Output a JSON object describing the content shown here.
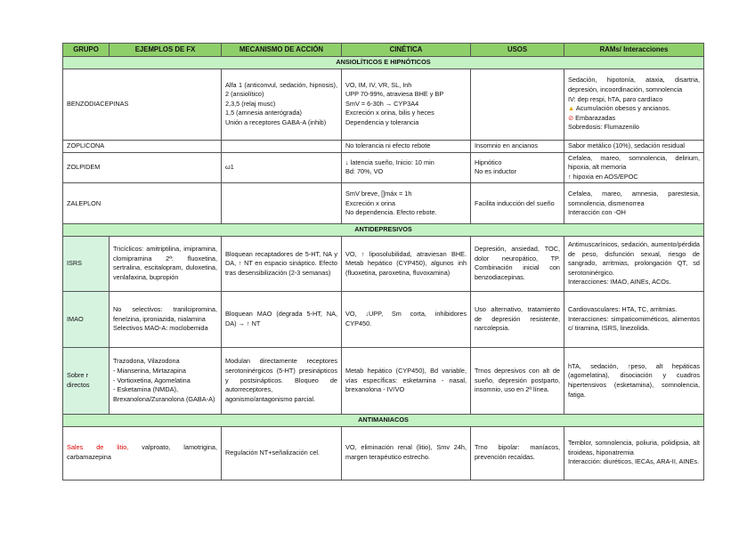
{
  "headers": [
    "GRUPO",
    "EJEMPLOS DE FX",
    "MECANISMO DE ACCIÓN",
    "CINÉTICA",
    "USOS",
    "RAMs/ Interacciones"
  ],
  "sections": {
    "ansioliticos": "ANSIOLÍTICOS E HIPNÓTICOS",
    "antidepresivos": "ANTIDEPRESIVOS",
    "antimaniacos": "ANTIMANIACOS"
  },
  "benzo": {
    "grupo": "BENZODIACEPINAS",
    "mecanismo": [
      "Alfa 1 (anticonvul, sedación, hipnosis), 2 (ansiolítico)",
      "2,3,5 (relaj musc)",
      "1,5 (amnesia anterógrada)",
      "Unión a receptores GABA-A (inhib)"
    ],
    "cinetica": [
      "VO, IM, IV, VR, SL, Inh",
      "UPP 70-99%, atraviesa BHE y BP",
      "SmV = 6-30h → CYP3A4",
      "Excreción x orina, bilis y heces",
      "Dependencia y tolerancia"
    ],
    "usos": "",
    "rams": [
      "Sedación, hipotonía, ataxia, disartria, depresión, incoordinación, somnolencia",
      "IV: dep respi, hTA, paro cardíaco"
    ],
    "warn_icon": "warning-icon",
    "warn_text": "Acumulación obesos y ancianos.",
    "ban_icon": "prohibited-icon",
    "ban_text": "Embarazadas",
    "sobredosis": "Sobredosis: Flumazenilo"
  },
  "zopliclona": {
    "grupo": "ZOPLICONA",
    "cinetica": "No tolerancia ni efecto rebote",
    "usos": "Insomnio en ancianos",
    "rams": "Sabor metálico (10%), sedación residual"
  },
  "zolpidem": {
    "grupo": "ZOLPIDEM",
    "mecanismo": "ω1",
    "cinetica": [
      "↓ latencia sueño, Inicio: 10 min",
      "Bd: 70%, VO"
    ],
    "usos": [
      "Hipnótico",
      "No es inductor"
    ],
    "rams": [
      "Cefalea, mareo, somnolencia, delirium, hipoxia, alt memoria",
      "↑ hipoxia en AOS/EPOC"
    ]
  },
  "zaleplon": {
    "grupo": "ZALEPLON",
    "cinetica": [
      "SmV breve, []máx = 1h",
      "Excreción x orina",
      "No dependencia. Efecto rebote."
    ],
    "usos": "Facilita inducción del sueño",
    "rams": [
      "Cefalea, mareo, amnesia, parestesia, somnolencia, dismenorrea",
      "Interacción con -OH"
    ]
  },
  "isrs": {
    "grupo": "ISRS",
    "ejemplos": "Tricíclicos: amitriptilina, imipramina, clomipramina 2ª: fluoxetina, sertralina, escitalopram, duloxetina, venlafaxina, bupropión",
    "mecanismo": "Bloquean recaptadores de 5-HT, NA y DA, ↑ NT en espacio sináptico. Efecto tras desensibilización (2-3 semanas)",
    "cinetica": "VO, ↑ liposolubilidad, atraviesan BHE. Metab hepático (CYP450), algunos inh (fluoxetina, paroxetina, fluvoxamina)",
    "usos": "Depresión, ansiedad, TOC, dolor neuropático, TP. Combinación inicial con benzodiacepinas.",
    "rams": [
      "Antimuscarínicos, sedación, aumento/pérdida de peso, disfunción sexual, riesgo de sangrado, arritmias, prolongación QT, sd serotoninérgico.",
      "Interacciones: IMAO, AINEs, ACOs."
    ]
  },
  "imao": {
    "grupo": "IMAO",
    "ejemplos": [
      "No selectivos: tranilcipromina, fenelzina, iproniazida, nialamina",
      "Selectivos MAO-A: moclobemida"
    ],
    "mecanismo": "Bloquean MAO (degrada 5-HT, NA, DA) → ↑ NT",
    "cinetica": "VO, ↓UPP, Sm corta, inhibidores CYP450.",
    "usos": "Uso alternativo, tratamiento de depresión resistente, narcolepsia.",
    "rams": [
      "Cardiovasculares: HTA, TC, arritmias.",
      "Interacciones: simpaticomiméticos, alimentos c/ tiramina, ISRS, linezolida."
    ]
  },
  "sobre": {
    "grupo": "Sobre r directos",
    "ejemplos": [
      "Trazodona, Vilazodona",
      "- Mianserina, Mirtazapina",
      "- Vortioxetina, Agomelatina",
      "- Esketamina (NMDA),",
      "Brexanolona/Zuranolona (GABA-A)"
    ],
    "mecanismo": "Modulan directamente receptores serotoninérgicos (5-HT) presinápticos y postsinápticos. Bloqueo de autorreceptores, agonismo/antagonismo parcial.",
    "cinetica": "Metab hepático (CYP450), Bd variable, vías específicas: esketamina - nasal, brexanolona - IV/VO",
    "usos": "Trnos depresivos con alt de sueño, depresión postparto, insomnio, uso en 2ª línea.",
    "rams": "hTA, sedación, ↑peso, alt hepáticas (agomelatina), disociación y cuadros hipertensivos (esketamina), somnolencia, fatiga."
  },
  "antimaniacos": {
    "grupo_red": "Sales de litio,",
    "grupo_rest": " valproato, lamotrigina, carbamazepina",
    "mecanismo": "Regulación NT+señalización cel.",
    "cinetica": "VO, eliminación renal (litio), Smv 24h, margen terapéutico estrecho.",
    "usos": "Trno bipolar: maníacos, prevención recaídas.",
    "rams": [
      "Temblor, somnolencia, poliuria, polidipsia, alt tiroideas, hiponatremia",
      "Interacción: diuréticos, IECAs, ARA-II, AINEs."
    ]
  },
  "colors": {
    "header": "#8fcf6a",
    "section": "#c4f2c4",
    "group_cell": "#d6f3e0",
    "lithium": "#e00000"
  }
}
